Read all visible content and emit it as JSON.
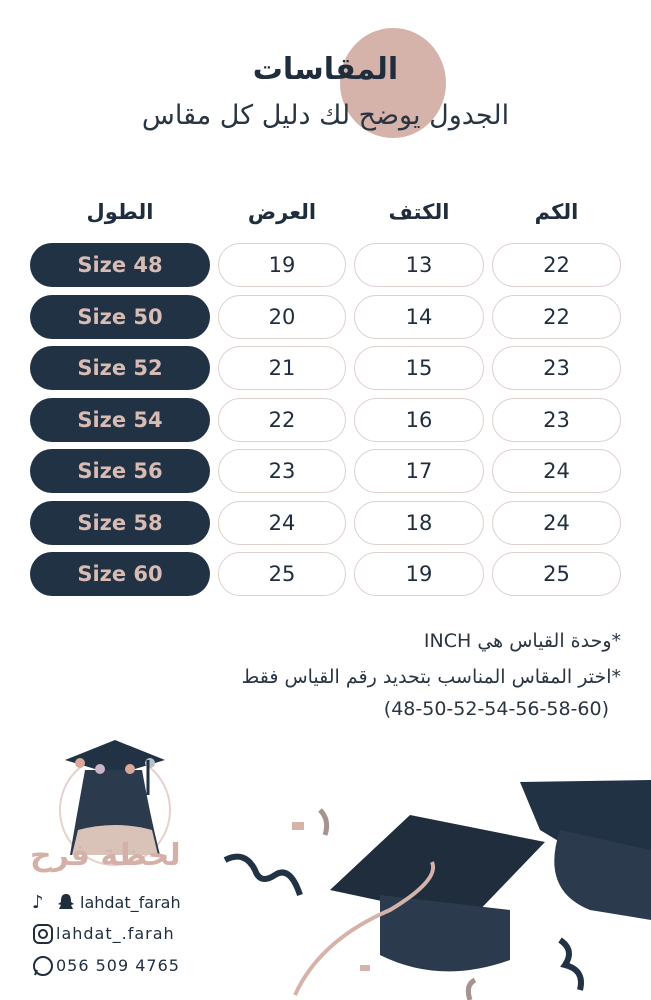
{
  "header": {
    "title": "المقاسات",
    "subtitle": "الجدول يوضح لك دليل كل مقاس"
  },
  "table": {
    "columns": [
      "الطول",
      "العرض",
      "الكتف",
      "الكم"
    ],
    "rows": [
      [
        "Size 48",
        "19",
        "13",
        "22"
      ],
      [
        "Size 50",
        "20",
        "14",
        "22"
      ],
      [
        "Size 52",
        "21",
        "15",
        "23"
      ],
      [
        "Size 54",
        "22",
        "16",
        "23"
      ],
      [
        "Size 56",
        "23",
        "17",
        "24"
      ],
      [
        "Size 58",
        "24",
        "18",
        "24"
      ],
      [
        "Size 60",
        "25",
        "19",
        "25"
      ]
    ]
  },
  "notes": {
    "unit": "*وحدة القياس هي INCH",
    "choose": "*اختر المقاس المناسب بتحديد رقم القياس فقط",
    "sizes": "(48-50-52-54-56-58-60)"
  },
  "brand": {
    "logo_text": "لحظة فرح"
  },
  "contacts": {
    "tiktok_snapchat": "lahdat_farah",
    "instagram": "lahdat_.farah",
    "whatsapp": "056 509 4765"
  },
  "colors": {
    "navy": "#213245",
    "rose": "#d6b3aa",
    "pill_text": "#d8bcb4"
  }
}
